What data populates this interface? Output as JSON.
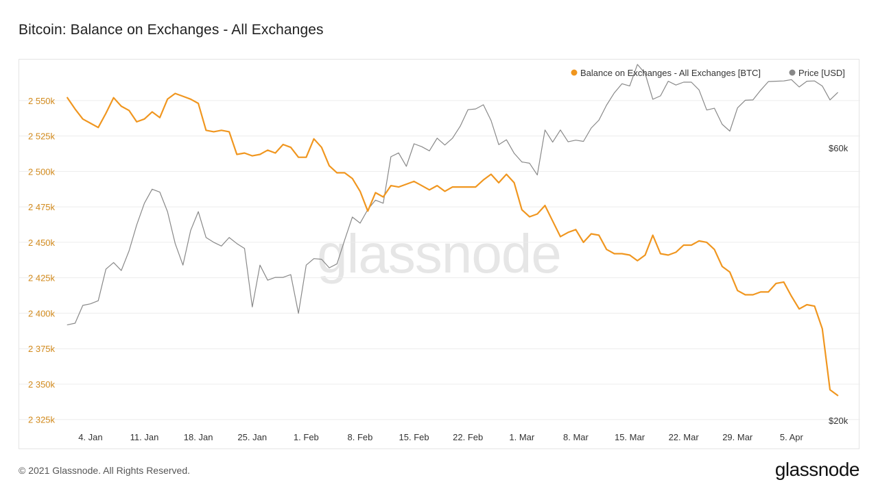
{
  "header": {
    "title": "Bitcoin: Balance on Exchanges - All Exchanges"
  },
  "footer": {
    "copyright": "© 2021 Glassnode. All Rights Reserved.",
    "logo": "glassnode"
  },
  "watermark": "glassnode",
  "colors": {
    "balance": "#f0961f",
    "price": "#888888",
    "grid": "#ececec",
    "left_axis": "#d28a1c"
  },
  "chart_data": {
    "type": "line",
    "title": "Bitcoin: Balance on Exchanges - All Exchanges",
    "legend_position": "top-right",
    "grid": true,
    "x_ticks": [
      "4. Jan",
      "11. Jan",
      "18. Jan",
      "25. Jan",
      "1. Feb",
      "8. Feb",
      "15. Feb",
      "22. Feb",
      "1. Mar",
      "8. Mar",
      "15. Mar",
      "22. Mar",
      "29. Mar",
      "5. Apr"
    ],
    "x_tick_days": [
      3,
      10,
      17,
      24,
      31,
      38,
      45,
      52,
      59,
      66,
      73,
      80,
      87,
      94
    ],
    "xlim_days": [
      -1,
      99
    ],
    "y_left": {
      "ticks": [
        "2 325k",
        "2 350k",
        "2 375k",
        "2 400k",
        "2 425k",
        "2 450k",
        "2 475k",
        "2 500k",
        "2 525k",
        "2 550k"
      ],
      "tick_values": [
        2325000,
        2350000,
        2375000,
        2400000,
        2425000,
        2450000,
        2475000,
        2500000,
        2525000,
        2550000
      ],
      "range": [
        2321000,
        2562000
      ]
    },
    "y_right": {
      "ticks": [
        "$20k",
        "$60k"
      ],
      "scale": "log"
    },
    "series": [
      {
        "name": "Balance on Exchanges - All Exchanges [BTC]",
        "axis": "left",
        "values": [
          2552000,
          2544000,
          2537000,
          2534000,
          2531000,
          2541000,
          2552000,
          2546000,
          2543000,
          2535000,
          2537000,
          2542000,
          2538000,
          2551000,
          2555000,
          2553000,
          2551000,
          2548000,
          2529000,
          2528000,
          2529000,
          2528000,
          2512000,
          2513000,
          2511000,
          2512000,
          2515000,
          2513000,
          2519000,
          2517000,
          2510000,
          2510000,
          2523000,
          2517000,
          2504000,
          2499000,
          2499000,
          2495000,
          2486000,
          2472000,
          2485000,
          2482000,
          2490000,
          2489000,
          2491000,
          2493000,
          2490000,
          2487000,
          2490000,
          2486000,
          2489000,
          2489000,
          2489000,
          2489000,
          2494000,
          2498000,
          2492000,
          2498000,
          2492000,
          2473000,
          2468000,
          2470000,
          2476000,
          2465000,
          2454000,
          2457000,
          2459000,
          2450000,
          2456000,
          2455000,
          2445000,
          2442000,
          2442000,
          2441000,
          2437000,
          2441000,
          2455000,
          2442000,
          2441000,
          2443000,
          2448000,
          2448000,
          2451000,
          2450000,
          2445000,
          2433000,
          2429000,
          2416000,
          2413000,
          2413000,
          2415000,
          2415000,
          2421000,
          2422000,
          2412000,
          2403000,
          2406000,
          2405000,
          2389000,
          2346000,
          2342000
        ]
      },
      {
        "name": "Price [USD]",
        "axis": "right",
        "values": [
          29400,
          29600,
          31800,
          32000,
          32400,
          36800,
          37800,
          36600,
          39600,
          44000,
          48000,
          50800,
          50200,
          46400,
          40800,
          37400,
          43000,
          46400,
          41800,
          41000,
          40400,
          41800,
          40800,
          40000,
          31600,
          37400,
          35200,
          35600,
          35600,
          36000,
          30800,
          37400,
          38400,
          38300,
          37000,
          37600,
          41400,
          45400,
          44300,
          46800,
          48600,
          48000,
          57900,
          58800,
          55700,
          61000,
          60300,
          59300,
          62400,
          60700,
          62400,
          65500,
          70000,
          70200,
          71400,
          67000,
          60800,
          62000,
          58700,
          56700,
          56400,
          53800,
          64500,
          61400,
          64500,
          61500,
          61900,
          61600,
          65000,
          67100,
          71300,
          74900,
          77700,
          77000,
          84000,
          81000,
          73000,
          74000,
          78500,
          77300,
          78200,
          78200,
          75800,
          69900,
          70400,
          66000,
          64200,
          70500,
          72700,
          72800,
          75700,
          78400,
          78500,
          78600,
          79000,
          76700,
          78500,
          78600,
          77000,
          72800,
          75000
        ]
      }
    ]
  }
}
